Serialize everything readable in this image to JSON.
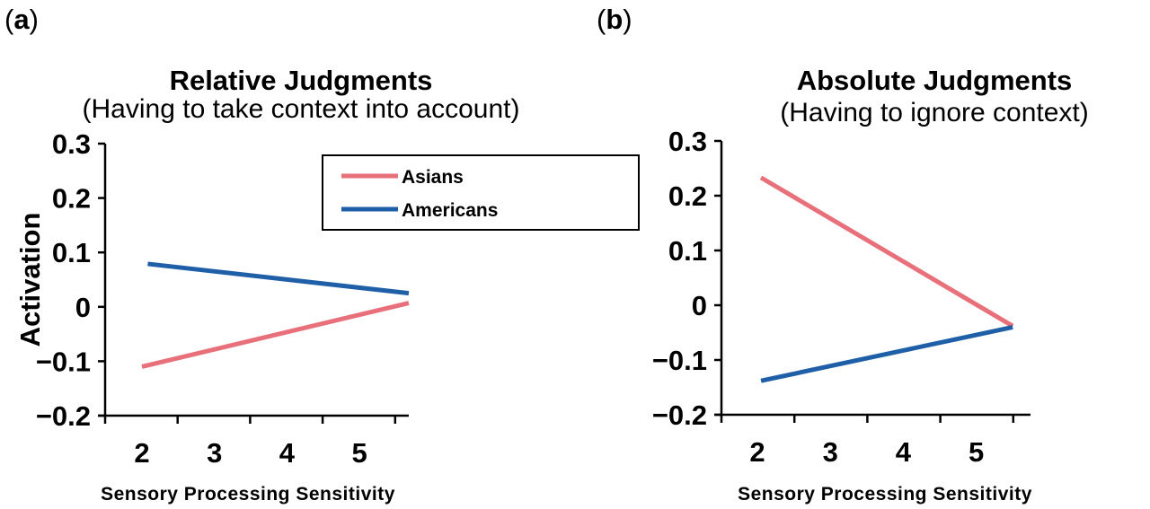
{
  "chart_data": [
    {
      "type": "line",
      "panel_label": "(a)",
      "panel_letter": "a",
      "title": "Relative Judgments",
      "subtitle": "(Having to take context into account)",
      "xlabel": "Sensory Processing Sensitivity",
      "ylabel": "Activation",
      "xticks": [
        "2",
        "3",
        "4",
        "5"
      ],
      "yticks": [
        "0.3",
        "0.2",
        "0.1",
        "0",
        "−0.1",
        "−0.2"
      ],
      "ylim": [
        -0.2,
        0.3
      ],
      "legend": {
        "placement": "top-right",
        "entries": [
          "Asians",
          "Americans"
        ]
      },
      "series": [
        {
          "name": "Asians",
          "color": "#e8707a",
          "x": [
            2,
            5.68
          ],
          "y": [
            -0.11,
            0.007
          ]
        },
        {
          "name": "Americans",
          "color": "#1f5fa8",
          "x": [
            2.08,
            5.68
          ],
          "y": [
            0.079,
            0.025
          ]
        }
      ]
    },
    {
      "type": "line",
      "panel_label": "(b)",
      "panel_letter": "b",
      "title": "Absolute Judgments",
      "subtitle": "(Having to ignore context)",
      "xlabel": "Sensory Processing Sensitivity",
      "ylabel": "",
      "xticks": [
        "2",
        "3",
        "4",
        "5"
      ],
      "yticks": [
        "0.3",
        "0.2",
        "0.1",
        "0",
        "−0.1",
        "−0.2"
      ],
      "ylim": [
        -0.2,
        0.3
      ],
      "series": [
        {
          "name": "Asians",
          "color": "#e8707a",
          "x": [
            2.05,
            5.5
          ],
          "y": [
            0.233,
            -0.038
          ]
        },
        {
          "name": "Americans",
          "color": "#1f5fa8",
          "x": [
            2.05,
            5.5
          ],
          "y": [
            -0.138,
            -0.04
          ]
        }
      ]
    }
  ]
}
